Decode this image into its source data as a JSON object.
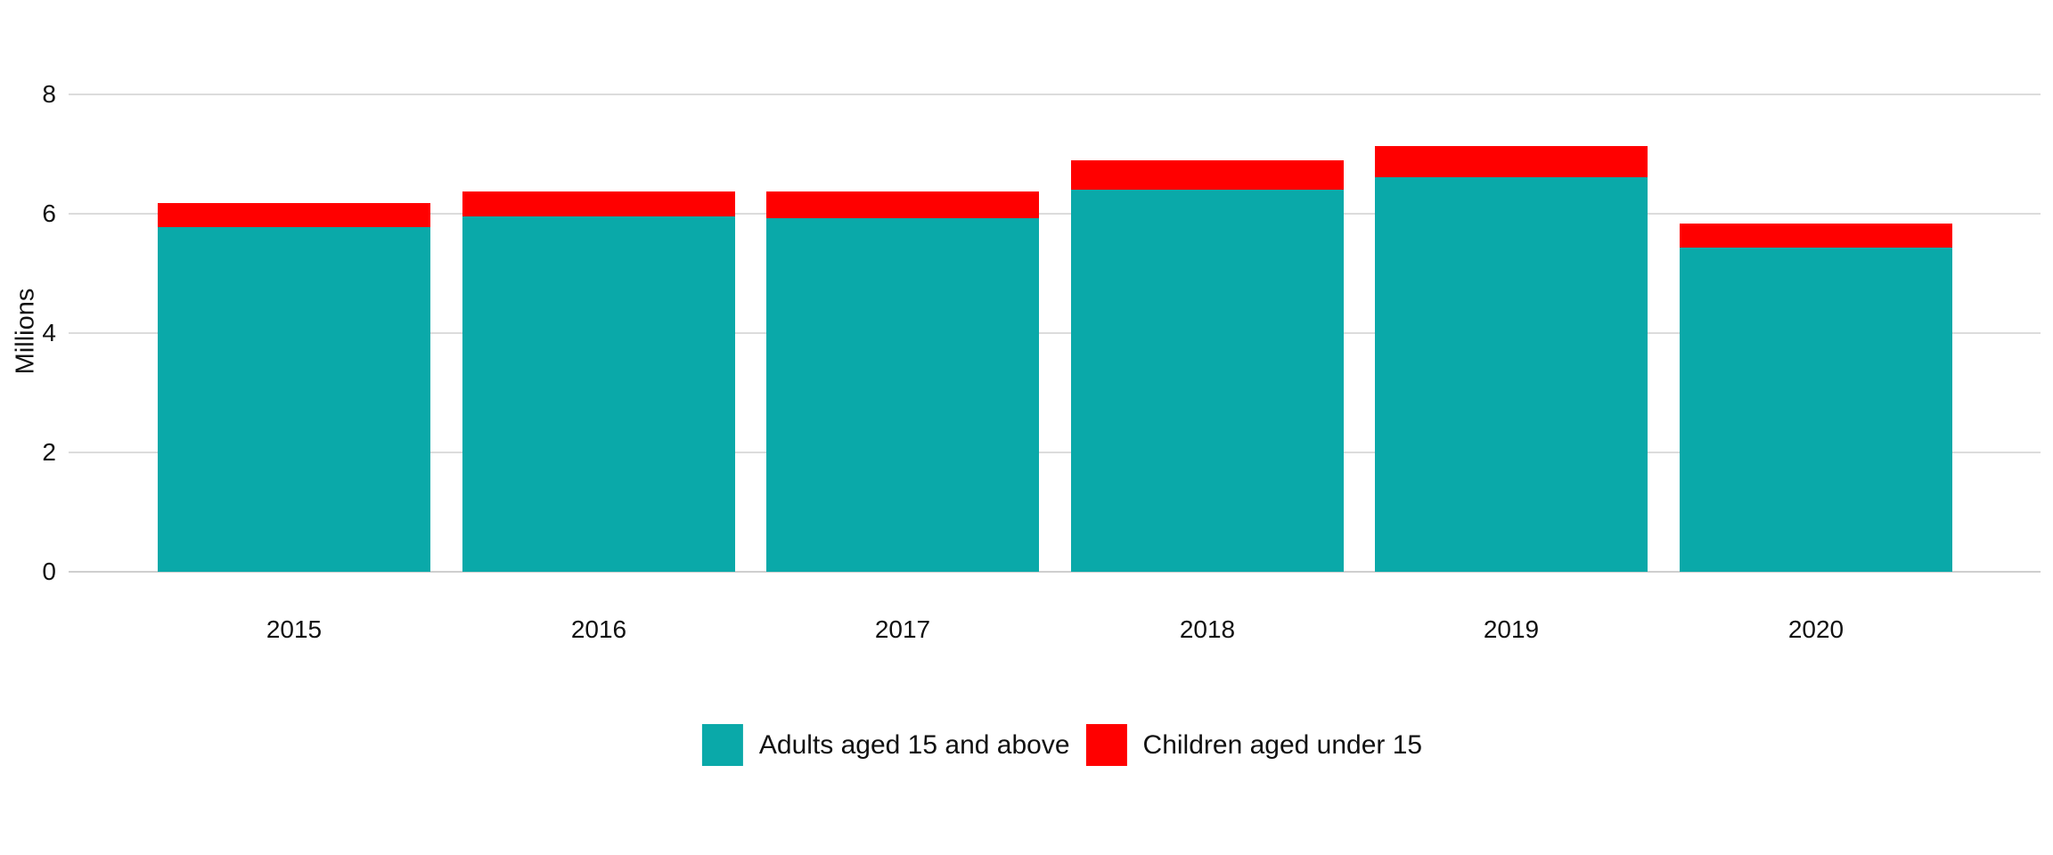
{
  "chart_data": {
    "type": "bar",
    "stacked": true,
    "title": "",
    "xlabel": "",
    "ylabel": "Millions",
    "categories": [
      "2015",
      "2016",
      "2017",
      "2018",
      "2019",
      "2020"
    ],
    "series": [
      {
        "name": "Adults aged 15 and above",
        "color": "#0aa9a9",
        "values": [
          5.78,
          5.96,
          5.92,
          6.4,
          6.61,
          5.44
        ]
      },
      {
        "name": "Children aged under 15",
        "color": "#ff0000",
        "values": [
          0.4,
          0.41,
          0.46,
          0.49,
          0.52,
          0.4
        ]
      }
    ],
    "totals": [
      6.18,
      6.37,
      6.38,
      6.89,
      7.13,
      5.84
    ],
    "yticks": [
      0,
      2,
      4,
      6,
      8
    ],
    "ylim": [
      0,
      8
    ],
    "grid": true,
    "legend_position": "bottom-center"
  },
  "colors": {
    "background": "#ffffff",
    "gridline": "#dcdcdc",
    "zero_line": "#cfcfcf",
    "axis_text": "#111111"
  }
}
